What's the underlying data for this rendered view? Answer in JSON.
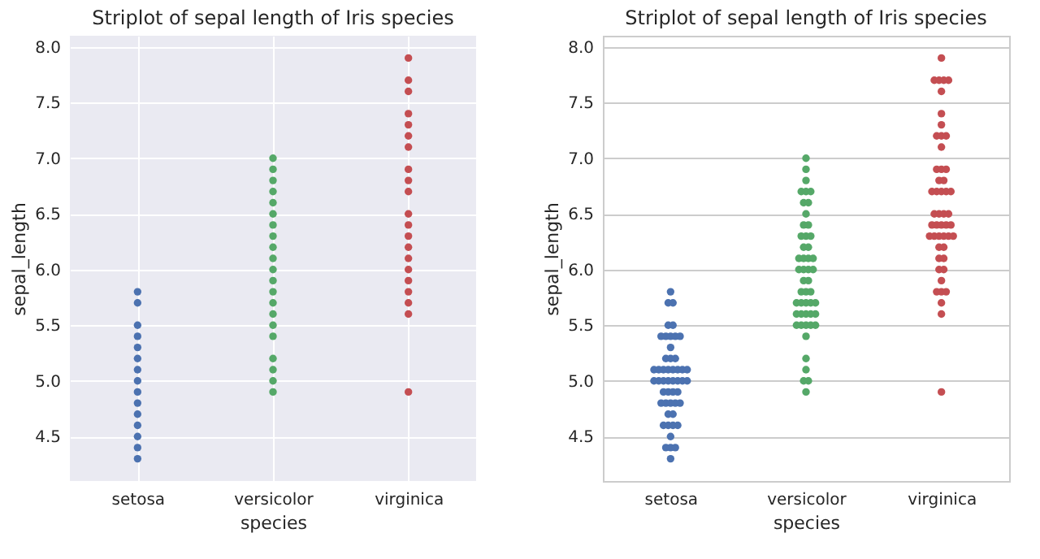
{
  "chart_data": [
    {
      "type": "scatter",
      "title": "Striplot of sepal length of Iris species",
      "xlabel": "species",
      "ylabel": "sepal_length",
      "categories": [
        "setosa",
        "versicolor",
        "virginica"
      ],
      "ylim": [
        4.1,
        8.1
      ],
      "yticks": [
        {
          "value": 4.5,
          "label": "4.5"
        },
        {
          "value": 5,
          "label": "5.0"
        },
        {
          "value": 5.5,
          "label": "5.5"
        },
        {
          "value": 6,
          "label": "6.0"
        },
        {
          "value": 6.5,
          "label": "6.5"
        },
        {
          "value": 7,
          "label": "7.0"
        },
        {
          "value": 7.5,
          "label": "7.5"
        },
        {
          "value": 8,
          "label": "8.0"
        }
      ],
      "grid": true,
      "marker": "circle",
      "series": [
        {
          "color": "#4c72b0",
          "x": [
            "setosa",
            "setosa",
            "setosa",
            "setosa",
            "setosa",
            "setosa",
            "setosa",
            "setosa",
            "setosa",
            "setosa",
            "setosa",
            "setosa",
            "setosa",
            "setosa",
            "setosa"
          ],
          "values": [
            4.3,
            4.4,
            4.5,
            4.6,
            4.7,
            4.8,
            4.9,
            5.0,
            5.1,
            5.2,
            5.3,
            5.4,
            5.5,
            5.7,
            5.8
          ]
        },
        {
          "color": "#55a868",
          "x": [
            "versicolor",
            "versicolor",
            "versicolor",
            "versicolor",
            "versicolor",
            "versicolor",
            "versicolor",
            "versicolor",
            "versicolor",
            "versicolor",
            "versicolor",
            "versicolor",
            "versicolor",
            "versicolor",
            "versicolor",
            "versicolor",
            "versicolor",
            "versicolor",
            "versicolor",
            "versicolor",
            "versicolor"
          ],
          "values": [
            4.9,
            5.0,
            5.1,
            5.2,
            5.4,
            5.5,
            5.6,
            5.7,
            5.8,
            5.9,
            6.0,
            6.1,
            6.2,
            6.3,
            6.4,
            6.5,
            6.6,
            6.7,
            6.8,
            6.9,
            7.0
          ]
        },
        {
          "color": "#c44e52",
          "x": [
            "virginica",
            "virginica",
            "virginica",
            "virginica",
            "virginica",
            "virginica",
            "virginica",
            "virginica",
            "virginica",
            "virginica",
            "virginica",
            "virginica",
            "virginica",
            "virginica",
            "virginica",
            "virginica",
            "virginica",
            "virginica",
            "virginica",
            "virginica",
            "virginica"
          ],
          "values": [
            4.9,
            5.6,
            5.7,
            5.8,
            5.9,
            6.0,
            6.1,
            6.2,
            6.3,
            6.4,
            6.5,
            6.7,
            6.8,
            6.9,
            7.1,
            7.2,
            7.3,
            7.4,
            7.6,
            7.7,
            7.9
          ]
        }
      ]
    },
    {
      "type": "scatter",
      "title": "Striplot of sepal length of Iris species",
      "xlabel": "species",
      "ylabel": "sepal_length",
      "categories": [
        "setosa",
        "versicolor",
        "virginica"
      ],
      "ylim": [
        4.1,
        8.1
      ],
      "yticks": [
        {
          "value": 4.5,
          "label": "4.5"
        },
        {
          "value": 5,
          "label": "5.0"
        },
        {
          "value": 5.5,
          "label": "5.5"
        },
        {
          "value": 6,
          "label": "6.0"
        },
        {
          "value": 6.5,
          "label": "6.5"
        },
        {
          "value": 7,
          "label": "7.0"
        },
        {
          "value": 7.5,
          "label": "7.5"
        },
        {
          "value": 8,
          "label": "8.0"
        }
      ],
      "grid": "y",
      "marker": "circle",
      "series": [
        {
          "color": "#4c72b0",
          "x": [
            "setosa",
            "setosa",
            "setosa",
            "setosa",
            "setosa",
            "setosa",
            "setosa",
            "setosa",
            "setosa",
            "setosa",
            "setosa",
            "setosa",
            "setosa",
            "setosa",
            "setosa",
            "setosa",
            "setosa",
            "setosa",
            "setosa",
            "setosa",
            "setosa",
            "setosa",
            "setosa",
            "setosa",
            "setosa",
            "setosa",
            "setosa",
            "setosa",
            "setosa",
            "setosa",
            "setosa",
            "setosa",
            "setosa",
            "setosa",
            "setosa",
            "setosa",
            "setosa",
            "setosa",
            "setosa",
            "setosa",
            "setosa",
            "setosa",
            "setosa",
            "setosa",
            "setosa",
            "setosa",
            "setosa",
            "setosa",
            "setosa",
            "setosa"
          ],
          "values": [
            5.1,
            4.9,
            4.7,
            4.6,
            5.0,
            5.4,
            4.6,
            5.0,
            4.4,
            4.9,
            5.4,
            4.8,
            4.8,
            4.3,
            5.8,
            5.7,
            5.4,
            5.1,
            5.7,
            5.1,
            5.4,
            5.1,
            4.6,
            5.1,
            4.8,
            5.0,
            5.0,
            5.2,
            5.2,
            4.7,
            4.8,
            5.4,
            5.2,
            5.5,
            4.9,
            5.0,
            5.5,
            4.9,
            4.4,
            5.1,
            5.0,
            4.5,
            4.4,
            5.0,
            5.1,
            4.8,
            5.1,
            4.6,
            5.3,
            5.0
          ]
        },
        {
          "color": "#55a868",
          "x": [
            "versicolor",
            "versicolor",
            "versicolor",
            "versicolor",
            "versicolor",
            "versicolor",
            "versicolor",
            "versicolor",
            "versicolor",
            "versicolor",
            "versicolor",
            "versicolor",
            "versicolor",
            "versicolor",
            "versicolor",
            "versicolor",
            "versicolor",
            "versicolor",
            "versicolor",
            "versicolor",
            "versicolor",
            "versicolor",
            "versicolor",
            "versicolor",
            "versicolor",
            "versicolor",
            "versicolor",
            "versicolor",
            "versicolor",
            "versicolor",
            "versicolor",
            "versicolor",
            "versicolor",
            "versicolor",
            "versicolor",
            "versicolor",
            "versicolor",
            "versicolor",
            "versicolor",
            "versicolor",
            "versicolor",
            "versicolor",
            "versicolor",
            "versicolor",
            "versicolor",
            "versicolor",
            "versicolor",
            "versicolor",
            "versicolor",
            "versicolor"
          ],
          "values": [
            7.0,
            6.4,
            6.9,
            5.5,
            6.5,
            5.7,
            6.3,
            4.9,
            6.6,
            5.2,
            5.0,
            5.9,
            6.0,
            6.1,
            5.6,
            6.7,
            5.6,
            5.8,
            6.2,
            5.6,
            5.9,
            6.1,
            6.3,
            6.1,
            6.4,
            6.6,
            6.8,
            6.7,
            6.0,
            5.7,
            5.5,
            5.5,
            5.8,
            6.0,
            5.4,
            6.0,
            6.7,
            6.3,
            5.6,
            5.5,
            5.5,
            6.1,
            5.8,
            5.0,
            5.6,
            5.7,
            5.7,
            6.2,
            5.1,
            5.7
          ]
        },
        {
          "color": "#c44e52",
          "x": [
            "virginica",
            "virginica",
            "virginica",
            "virginica",
            "virginica",
            "virginica",
            "virginica",
            "virginica",
            "virginica",
            "virginica",
            "virginica",
            "virginica",
            "virginica",
            "virginica",
            "virginica",
            "virginica",
            "virginica",
            "virginica",
            "virginica",
            "virginica",
            "virginica",
            "virginica",
            "virginica",
            "virginica",
            "virginica",
            "virginica",
            "virginica",
            "virginica",
            "virginica",
            "virginica",
            "virginica",
            "virginica",
            "virginica",
            "virginica",
            "virginica",
            "virginica",
            "virginica",
            "virginica",
            "virginica",
            "virginica",
            "virginica",
            "virginica",
            "virginica",
            "virginica",
            "virginica",
            "virginica",
            "virginica",
            "virginica",
            "virginica",
            "virginica"
          ],
          "values": [
            6.3,
            5.8,
            7.1,
            6.3,
            6.5,
            7.6,
            4.9,
            7.3,
            6.7,
            7.2,
            6.5,
            6.4,
            6.8,
            5.7,
            5.8,
            6.4,
            6.5,
            7.7,
            7.7,
            6.0,
            6.9,
            5.6,
            7.7,
            6.3,
            6.7,
            7.2,
            6.2,
            6.1,
            6.4,
            7.2,
            7.4,
            7.9,
            6.4,
            6.3,
            6.1,
            7.7,
            6.3,
            6.4,
            6.0,
            6.9,
            6.7,
            6.9,
            5.8,
            6.8,
            6.7,
            6.7,
            6.3,
            6.5,
            6.2,
            5.9
          ]
        }
      ]
    }
  ]
}
